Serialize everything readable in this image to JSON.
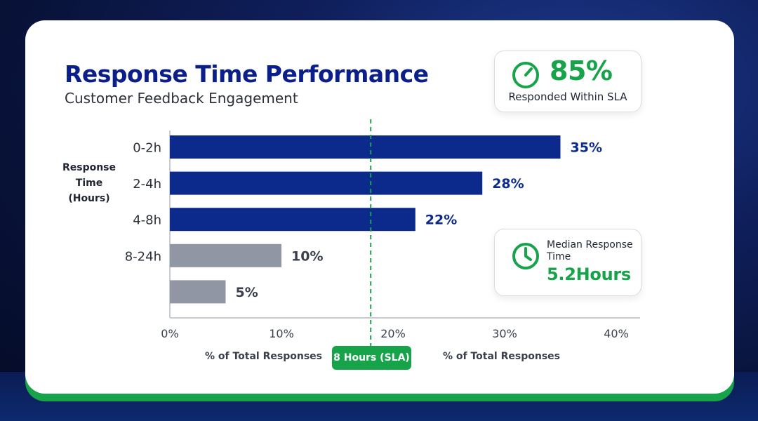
{
  "header": {
    "title": "Response Time Performance",
    "subtitle": "Customer Feedback Engagement"
  },
  "stats": {
    "sla": {
      "value": "85%",
      "caption": "Responded Within SLA",
      "icon": "timer-icon"
    },
    "median": {
      "label": "Median Response Time",
      "value": "5.2Hours",
      "icon": "clock-icon"
    }
  },
  "footer": {
    "left_label": "% of Total Responses",
    "sla_badge": "8 Hours (SLA)",
    "right_label": "% of Total Responses"
  },
  "colors": {
    "within_sla": "#0b2a8c",
    "beyond_sla": "#9096a3",
    "accent_green": "#16a34a",
    "title_blue": "#0b1f8a"
  },
  "chart_data": {
    "type": "bar",
    "orientation": "horizontal",
    "categories": [
      "0-2h",
      "2-4h",
      "4-8h",
      "8-24h",
      ""
    ],
    "values": [
      35,
      28,
      22,
      10,
      5
    ],
    "data_labels": [
      "35%",
      "28%",
      "22%",
      "10%",
      "5%"
    ],
    "bar_groups": [
      "within_sla",
      "within_sla",
      "within_sla",
      "beyond_sla",
      "beyond_sla"
    ],
    "ylabel": "Response Time (Hours)",
    "xlabel": "% of Total Responses",
    "xlim": [
      0,
      40
    ],
    "xticks": [
      "0%",
      "10%",
      "20%",
      "30%",
      "40%"
    ],
    "reference_line": {
      "value": 18,
      "label": "8 Hours (SLA)",
      "style": "dashed"
    },
    "grid": false
  }
}
